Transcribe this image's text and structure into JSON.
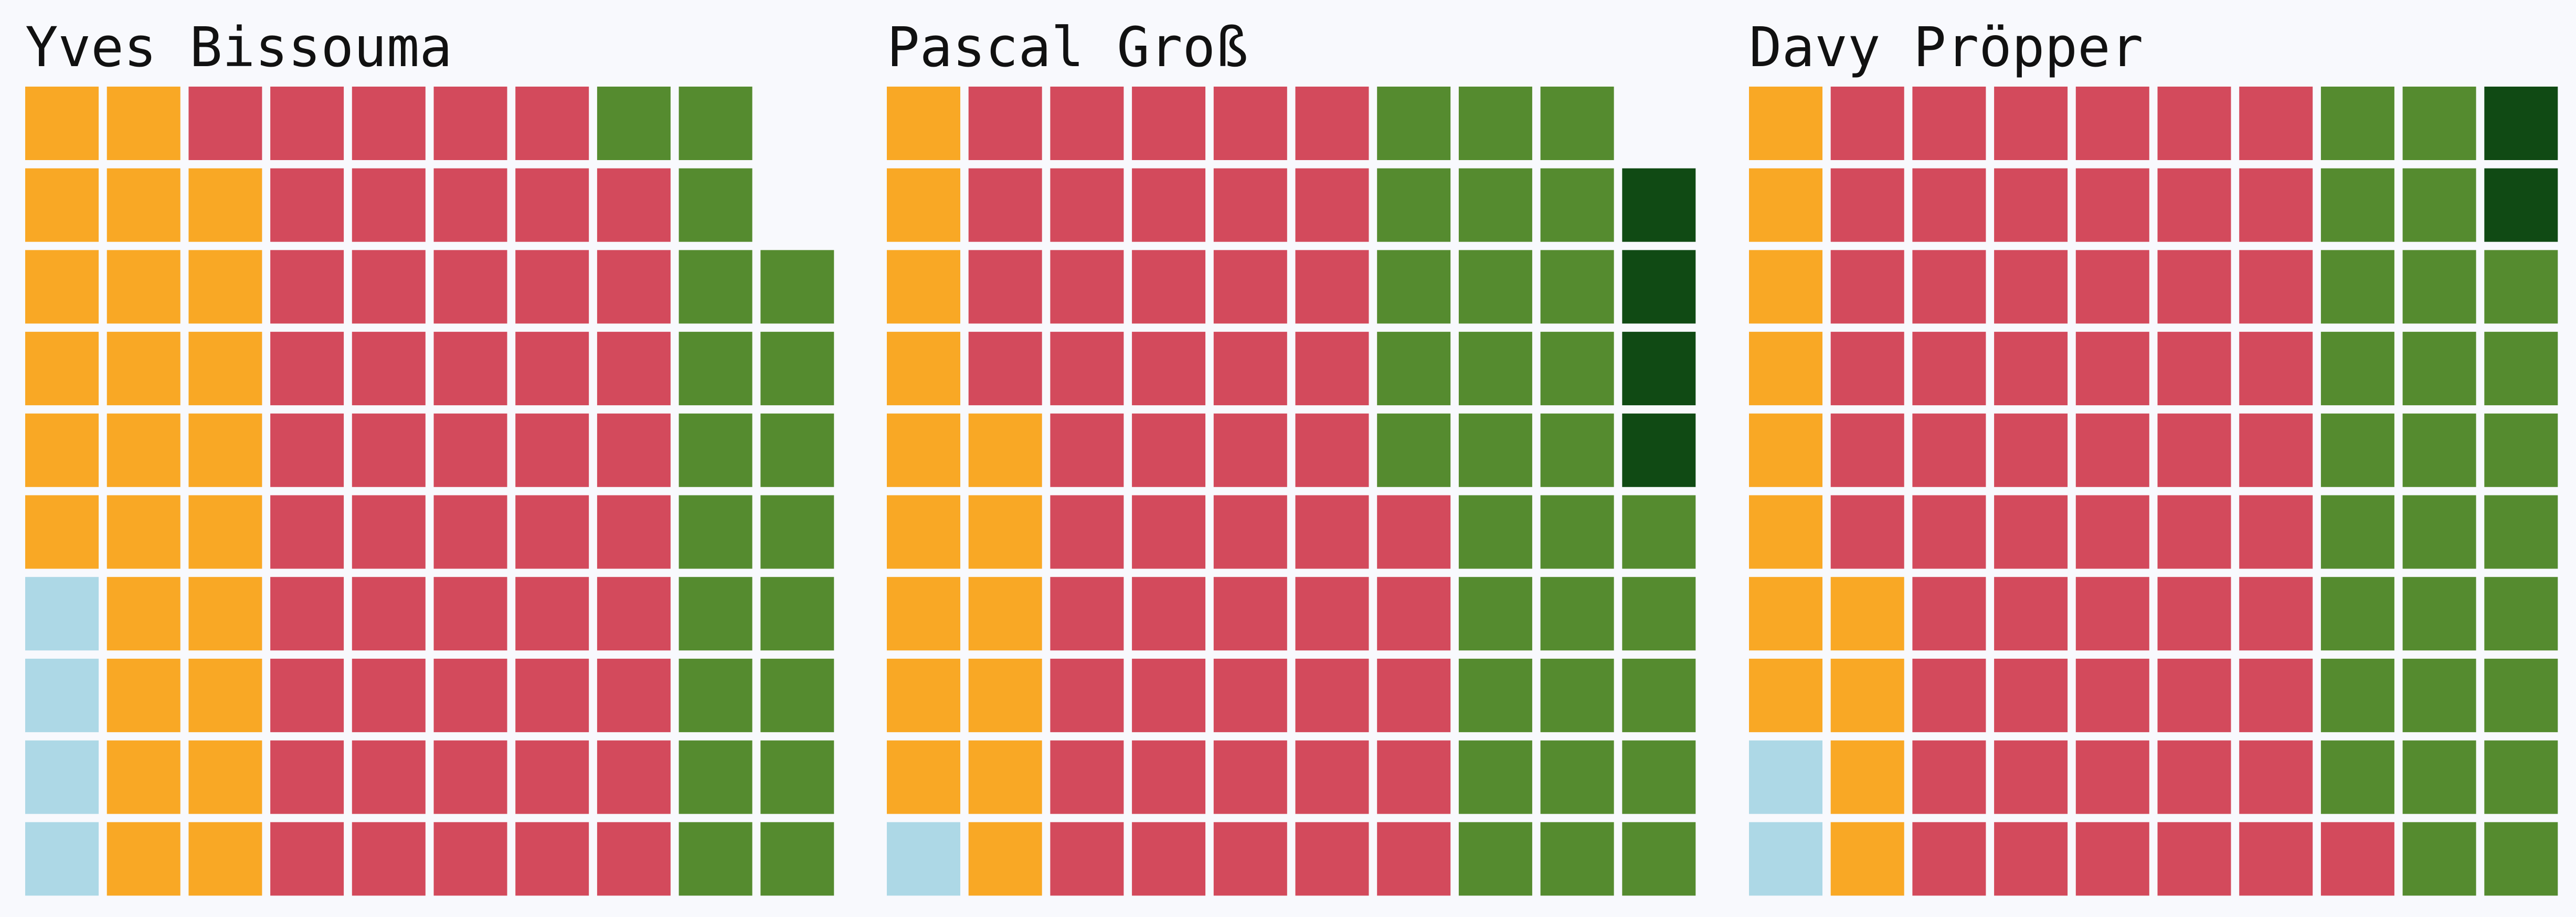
{
  "chart_data": [
    {
      "type": "waffle",
      "title": "Yves Bissouma",
      "rows": 10,
      "cols": 10,
      "fill_order": "column-major-from-bottom",
      "series": [
        {
          "color": "#add8e6",
          "value": 4
        },
        {
          "color": "#f9a825",
          "value": 25
        },
        {
          "color": "#d34a5c",
          "value": 50
        },
        {
          "color": "#558b2f",
          "value": 19
        },
        {
          "color": "#104a14",
          "value": 0
        }
      ]
    },
    {
      "type": "waffle",
      "title": "Pascal Groß",
      "rows": 10,
      "cols": 10,
      "fill_order": "column-major-from-bottom",
      "series": [
        {
          "color": "#add8e6",
          "value": 1
        },
        {
          "color": "#f9a825",
          "value": 15
        },
        {
          "color": "#d34a5c",
          "value": 49
        },
        {
          "color": "#558b2f",
          "value": 30
        },
        {
          "color": "#104a14",
          "value": 4
        }
      ]
    },
    {
      "type": "waffle",
      "title": "Davy Pröpper",
      "rows": 10,
      "cols": 10,
      "fill_order": "column-major-from-bottom",
      "series": [
        {
          "color": "#add8e6",
          "value": 2
        },
        {
          "color": "#f9a825",
          "value": 12
        },
        {
          "color": "#d34a5c",
          "value": 57
        },
        {
          "color": "#558b2f",
          "value": 27
        },
        {
          "color": "#104a14",
          "value": 2
        }
      ]
    }
  ]
}
